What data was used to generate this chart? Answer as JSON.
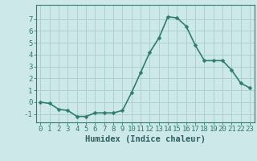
{
  "x": [
    0,
    1,
    2,
    3,
    4,
    5,
    6,
    7,
    8,
    9,
    10,
    11,
    12,
    13,
    14,
    15,
    16,
    17,
    18,
    19,
    20,
    21,
    22,
    23
  ],
  "y": [
    0.0,
    -0.1,
    -0.6,
    -0.7,
    -1.2,
    -1.2,
    -0.9,
    -0.9,
    -0.9,
    -0.7,
    0.8,
    2.5,
    4.2,
    5.4,
    7.2,
    7.1,
    6.4,
    4.8,
    3.5,
    3.5,
    3.5,
    2.7,
    1.6,
    1.2
  ],
  "xlabel": "Humidex (Indice chaleur)",
  "xlim": [
    -0.5,
    23.5
  ],
  "ylim": [
    -1.7,
    8.2
  ],
  "yticks": [
    -1,
    0,
    1,
    2,
    3,
    4,
    5,
    6,
    7
  ],
  "xticks": [
    0,
    1,
    2,
    3,
    4,
    5,
    6,
    7,
    8,
    9,
    10,
    11,
    12,
    13,
    14,
    15,
    16,
    17,
    18,
    19,
    20,
    21,
    22,
    23
  ],
  "line_color": "#2e7d6e",
  "marker_color": "#2e7d6e",
  "bg_color": "#cce8e8",
  "grid_color": "#aed0d0",
  "axis_color": "#2e7d6e",
  "tick_label_color": "#2e6060",
  "xlabel_color": "#2e6060",
  "xlabel_fontsize": 7.5,
  "tick_fontsize": 6.5,
  "line_width": 1.2,
  "marker_size": 2.5
}
